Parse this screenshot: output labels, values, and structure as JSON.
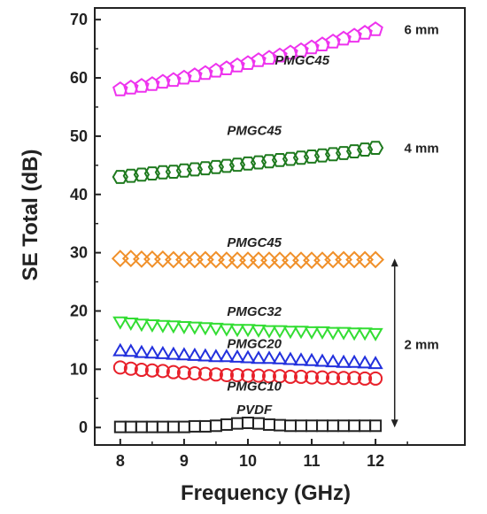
{
  "chart_data": {
    "type": "scatter",
    "xlabel": "Frequency (GHz)",
    "ylabel": "SE Total (dB)",
    "xlim": [
      7.6,
      13.4
    ],
    "ylim": [
      -3,
      72
    ],
    "xticks": [
      8,
      9,
      10,
      11,
      12
    ],
    "yticks": [
      0,
      10,
      20,
      30,
      40,
      50,
      60,
      70
    ],
    "series": [
      {
        "name": "PVDF",
        "marker": "square",
        "color": "#222222",
        "x_start": 8,
        "x_end": 12,
        "points": 25,
        "values": [
          0.1,
          0.1,
          0.1,
          0.1,
          0.1,
          0.1,
          0.1,
          0.2,
          0.2,
          0.3,
          0.5,
          0.7,
          0.8,
          0.7,
          0.5,
          0.4,
          0.3,
          0.3,
          0.3,
          0.3,
          0.3,
          0.3,
          0.3,
          0.3,
          0.3
        ]
      },
      {
        "name": "PMGC10",
        "marker": "circle",
        "color": "#e8202a",
        "x_start": 8,
        "x_end": 12,
        "points": 25,
        "values": [
          10.3,
          10.1,
          9.9,
          9.8,
          9.7,
          9.5,
          9.4,
          9.3,
          9.2,
          9.1,
          9.0,
          9.0,
          8.9,
          8.9,
          8.8,
          8.8,
          8.7,
          8.7,
          8.6,
          8.6,
          8.5,
          8.5,
          8.5,
          8.4,
          8.4
        ]
      },
      {
        "name": "PMGC20",
        "marker": "triangle-up",
        "color": "#2230dd",
        "x_start": 8,
        "x_end": 12,
        "points": 25,
        "values": [
          13.0,
          12.9,
          12.7,
          12.6,
          12.5,
          12.4,
          12.3,
          12.2,
          12.1,
          12.0,
          12.0,
          11.9,
          11.8,
          11.7,
          11.7,
          11.6,
          11.5,
          11.4,
          11.3,
          11.2,
          11.1,
          11.0,
          11.0,
          10.9,
          10.8
        ]
      },
      {
        "name": "PMGC32",
        "marker": "triangle-down",
        "color": "#33dd33",
        "x_start": 8,
        "x_end": 12,
        "points": 25,
        "values": [
          18.3,
          18.1,
          17.9,
          17.8,
          17.7,
          17.6,
          17.5,
          17.4,
          17.3,
          17.2,
          17.1,
          17.0,
          17.0,
          16.9,
          16.8,
          16.8,
          16.7,
          16.7,
          16.6,
          16.6,
          16.5,
          16.5,
          16.4,
          16.4,
          16.3
        ]
      },
      {
        "name": "PMGC45",
        "marker": "diamond",
        "color": "#f0902a",
        "x_start": 8,
        "x_end": 12,
        "points": 25,
        "values": [
          29.0,
          29.0,
          28.9,
          28.9,
          28.9,
          28.8,
          28.8,
          28.8,
          28.8,
          28.8,
          28.7,
          28.7,
          28.7,
          28.7,
          28.7,
          28.7,
          28.7,
          28.7,
          28.7,
          28.7,
          28.8,
          28.8,
          28.8,
          28.8,
          28.8
        ]
      },
      {
        "name": "PMGC45",
        "marker": "hexagon",
        "color": "#1f7a1f",
        "x_start": 8,
        "x_end": 12,
        "points": 25,
        "values": [
          43.0,
          43.2,
          43.4,
          43.6,
          43.8,
          43.9,
          44.1,
          44.3,
          44.5,
          44.7,
          44.9,
          45.1,
          45.3,
          45.5,
          45.7,
          45.9,
          46.1,
          46.3,
          46.5,
          46.7,
          46.9,
          47.1,
          47.4,
          47.7,
          48.0
        ]
      },
      {
        "name": "PMGC45",
        "marker": "pentagon",
        "color": "#ee33ee",
        "x_start": 8,
        "x_end": 12,
        "points": 25,
        "values": [
          58.0,
          58.3,
          58.6,
          58.9,
          59.3,
          59.6,
          60.0,
          60.4,
          60.8,
          61.2,
          61.6,
          62.1,
          62.5,
          63.0,
          63.4,
          63.8,
          64.3,
          64.7,
          65.2,
          65.7,
          66.2,
          66.7,
          67.2,
          67.7,
          68.3
        ]
      }
    ],
    "series_labels": [
      {
        "text": "PVDF",
        "x": 10.1,
        "y": 2.3
      },
      {
        "text": "PMGC10",
        "x": 10.1,
        "y": 6.3
      },
      {
        "text": "PMGC20",
        "x": 10.1,
        "y": 13.6
      },
      {
        "text": "PMGC32",
        "x": 10.1,
        "y": 19.2
      },
      {
        "text": "PMGC45",
        "x": 10.1,
        "y": 31.0
      },
      {
        "text": "PMGC45",
        "x": 10.1,
        "y": 50.2
      },
      {
        "text": "PMGC45",
        "x": 10.85,
        "y": 62.3
      }
    ],
    "thickness_labels": [
      {
        "text": "6 mm",
        "x": 12.45,
        "y": 67.5
      },
      {
        "text": "4 mm",
        "x": 12.45,
        "y": 47.2
      },
      {
        "text": "2 mm",
        "x": 12.45,
        "y": 13.5
      }
    ],
    "bracket": {
      "x": 12.3,
      "y_top": 29.0,
      "y_bottom": 0.0
    }
  }
}
